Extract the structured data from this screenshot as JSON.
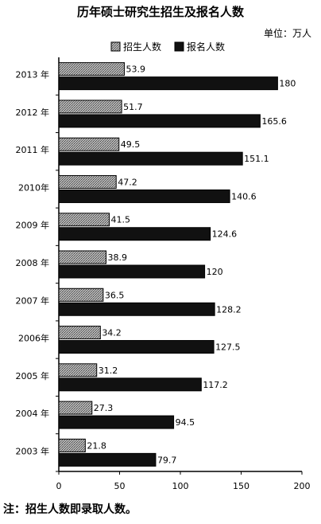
{
  "chart_data": {
    "type": "bar",
    "orientation": "horizontal",
    "title": "历年硕士研究生招生及报名人数",
    "unit_label": "单位：万人",
    "categories": [
      "2013 年",
      "2012 年",
      "2011 年",
      "2010年",
      "2009 年",
      "2008 年",
      "2007 年",
      "2006年",
      "2005 年",
      "2004 年",
      "2003 年"
    ],
    "series": [
      {
        "name": "招生人数",
        "color": "#9a9a9a",
        "values": [
          53.9,
          51.7,
          49.5,
          47.2,
          41.5,
          38.9,
          36.5,
          34.2,
          31.2,
          27.3,
          21.8
        ]
      },
      {
        "name": "报名人数",
        "color": "#111111",
        "values": [
          180,
          165.6,
          151.1,
          140.6,
          124.6,
          120,
          128.2,
          127.5,
          117.2,
          94.5,
          79.7
        ]
      }
    ],
    "xlim": [
      0,
      200
    ],
    "xticks": [
      0,
      50,
      100,
      150,
      200
    ],
    "legend_position": "top",
    "grid": false
  },
  "footnote": "注：招生人数即录取人数。"
}
